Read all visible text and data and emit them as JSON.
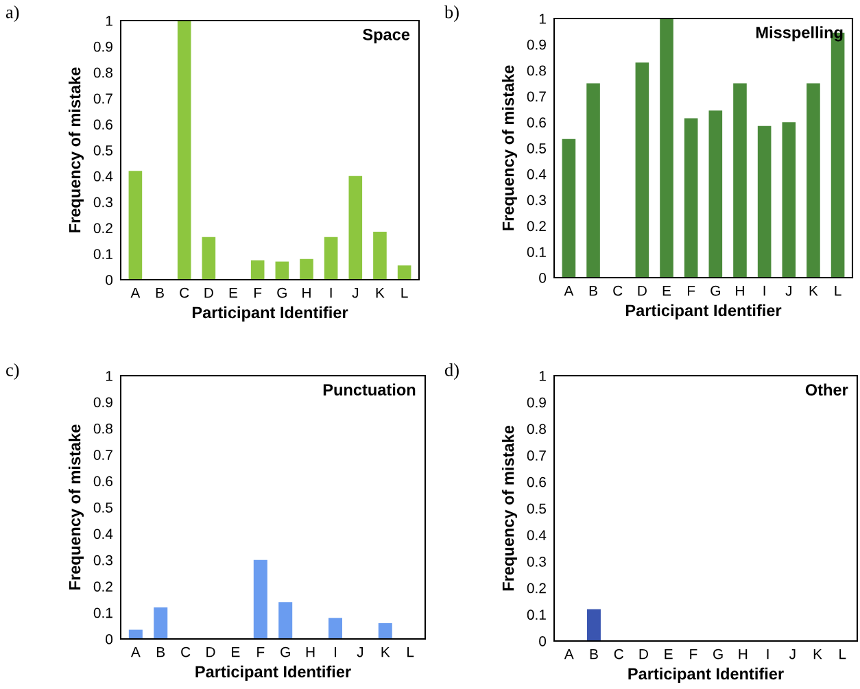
{
  "chart_data": [
    {
      "type": "bar",
      "title": "Space",
      "xlabel": "Participant Identifier",
      "ylabel": "Frequency of mistake",
      "annotations": [
        "a)"
      ],
      "categories": [
        "A",
        "B",
        "C",
        "D",
        "E",
        "F",
        "G",
        "H",
        "I",
        "J",
        "K",
        "L"
      ],
      "values": [
        0.42,
        0,
        1.0,
        0.165,
        0,
        0.075,
        0.07,
        0.08,
        0.165,
        0.4,
        0.185,
        0.055
      ],
      "color": "#8dc63f",
      "ylim": [
        0,
        1
      ],
      "yticks": [
        0,
        0.1,
        0.2,
        0.3,
        0.4,
        0.5,
        0.6,
        0.7,
        0.8,
        0.9,
        1
      ]
    },
    {
      "type": "bar",
      "title": "Misspelling",
      "xlabel": "Participant Identifier",
      "ylabel": "Frequency of mistake",
      "annotations": [
        "b)"
      ],
      "categories": [
        "A",
        "B",
        "C",
        "D",
        "E",
        "F",
        "G",
        "H",
        "I",
        "J",
        "K",
        "L"
      ],
      "values": [
        0.535,
        0.75,
        0,
        0.83,
        1.0,
        0.615,
        0.645,
        0.75,
        0.585,
        0.6,
        0.75,
        0.945
      ],
      "color": "#4a8a3a",
      "ylim": [
        0,
        1
      ],
      "yticks": [
        0,
        0.1,
        0.2,
        0.3,
        0.4,
        0.5,
        0.6,
        0.7,
        0.8,
        0.9,
        1
      ]
    },
    {
      "type": "bar",
      "title": "Punctuation",
      "xlabel": "Participant Identifier",
      "ylabel": "Frequency of mistake",
      "annotations": [
        "c)"
      ],
      "categories": [
        "A",
        "B",
        "C",
        "D",
        "E",
        "F",
        "G",
        "H",
        "I",
        "J",
        "K",
        "L"
      ],
      "values": [
        0.035,
        0.12,
        0,
        0,
        0,
        0.3,
        0.14,
        0,
        0.08,
        0,
        0.06,
        0
      ],
      "color": "#6a9cf0",
      "ylim": [
        0,
        1
      ],
      "yticks": [
        0,
        0.1,
        0.2,
        0.3,
        0.4,
        0.5,
        0.6,
        0.7,
        0.8,
        0.9,
        1
      ]
    },
    {
      "type": "bar",
      "title": "Other",
      "xlabel": "Participant Identifier",
      "ylabel": "Frequency of mistake",
      "annotations": [
        "d)"
      ],
      "categories": [
        "A",
        "B",
        "C",
        "D",
        "E",
        "F",
        "G",
        "H",
        "I",
        "J",
        "K",
        "L"
      ],
      "values": [
        0,
        0.12,
        0,
        0,
        0,
        0,
        0,
        0,
        0,
        0,
        0,
        0
      ],
      "color": "#3a55b0",
      "ylim": [
        0,
        1
      ],
      "yticks": [
        0,
        0.1,
        0.2,
        0.3,
        0.4,
        0.5,
        0.6,
        0.7,
        0.8,
        0.9,
        1
      ]
    }
  ]
}
